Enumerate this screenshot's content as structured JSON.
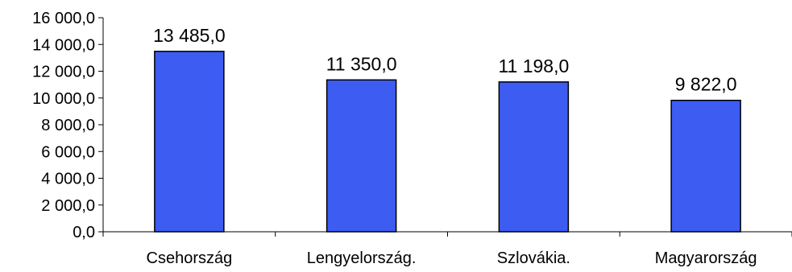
{
  "chart_data": {
    "type": "bar",
    "categories": [
      "Csehország",
      "Lengyelország.",
      "Szlovákia.",
      "Magyarország"
    ],
    "values": [
      13485.0,
      11350.0,
      11198.0,
      9822.0
    ],
    "data_labels": [
      "13 485,0",
      "11 350,0",
      "11 198,0",
      "9 822,0"
    ],
    "y_ticks": [
      0,
      2000,
      4000,
      6000,
      8000,
      10000,
      12000,
      14000,
      16000
    ],
    "y_tick_labels": [
      "0,0",
      "2 000,0",
      "4 000,0",
      "6 000,0",
      "8 000,0",
      "10 000,0",
      "12 000,0",
      "14 000,0",
      "16 000,0"
    ],
    "ylim": [
      0,
      16000
    ],
    "title": "",
    "xlabel": "",
    "ylabel": "",
    "grid": false,
    "legend": "none",
    "bar_color": "#3d5cf2",
    "bar_edge_color": "#000000"
  }
}
